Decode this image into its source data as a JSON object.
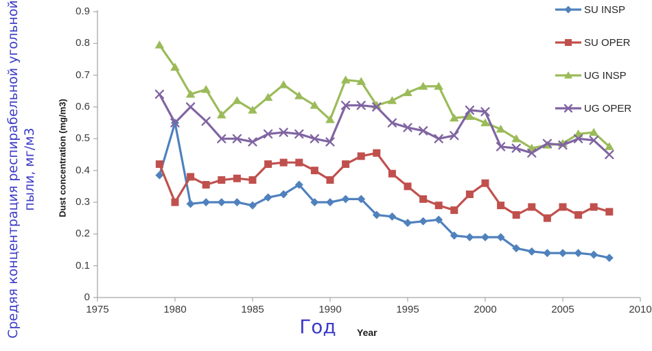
{
  "chart_data": {
    "type": "line",
    "xlabel_ru": "Год",
    "xlabel_en": "Year",
    "ylabel_ru_line1": "Средяя концентрация респирабельной угольной",
    "ylabel_ru_line2": "пыли, мг/м3",
    "ylabel_en": "Dust concentration (mg/m3)",
    "xlim": [
      1975,
      2010
    ],
    "ylim": [
      0,
      0.9
    ],
    "grid": false,
    "legend_position": "top-right-outside",
    "x_ticks": [
      "1975",
      "1980",
      "1985",
      "1990",
      "1995",
      "2000",
      "2005",
      "2010"
    ],
    "y_ticks": [
      "0",
      "0.1",
      "0.2",
      "0.3",
      "0.4",
      "0.5",
      "0.6",
      "0.7",
      "0.8",
      "0.9"
    ],
    "x": [
      1979,
      1980,
      1981,
      1982,
      1983,
      1984,
      1985,
      1986,
      1987,
      1988,
      1989,
      1990,
      1991,
      1992,
      1993,
      1994,
      1995,
      1996,
      1997,
      1998,
      1999,
      2000,
      2001,
      2002,
      2003,
      2004,
      2005,
      2006,
      2007,
      2008
    ],
    "series": [
      {
        "name": "SU INSP",
        "color": "#4F81BD",
        "marker": "diamond",
        "values": [
          0.385,
          0.55,
          0.295,
          0.3,
          0.3,
          0.3,
          0.29,
          0.315,
          0.325,
          0.355,
          0.3,
          0.3,
          0.31,
          0.31,
          0.26,
          0.255,
          0.235,
          0.24,
          0.245,
          0.195,
          0.19,
          0.19,
          0.19,
          0.155,
          0.145,
          0.14,
          0.14,
          0.14,
          0.135,
          0.125
        ]
      },
      {
        "name": "SU OPER",
        "color": "#C0504D",
        "marker": "square",
        "values": [
          0.42,
          0.3,
          0.38,
          0.355,
          0.37,
          0.375,
          0.37,
          0.42,
          0.425,
          0.425,
          0.4,
          0.37,
          0.42,
          0.445,
          0.455,
          0.39,
          0.35,
          0.31,
          0.29,
          0.275,
          0.325,
          0.36,
          0.29,
          0.26,
          0.285,
          0.25,
          0.285,
          0.26,
          0.285,
          0.27
        ]
      },
      {
        "name": "UG INSP",
        "color": "#9BBB59",
        "marker": "triangle",
        "values": [
          0.795,
          0.725,
          0.64,
          0.655,
          0.575,
          0.62,
          0.59,
          0.63,
          0.67,
          0.635,
          0.605,
          0.56,
          0.685,
          0.68,
          0.605,
          0.62,
          0.645,
          0.665,
          0.665,
          0.565,
          0.57,
          0.55,
          0.53,
          0.5,
          0.47,
          0.48,
          0.485,
          0.515,
          0.52,
          0.475
        ]
      },
      {
        "name": "UG OPER",
        "color": "#8064A2",
        "marker": "x",
        "values": [
          0.64,
          0.55,
          0.6,
          0.555,
          0.5,
          0.5,
          0.49,
          0.515,
          0.52,
          0.515,
          0.5,
          0.49,
          0.605,
          0.605,
          0.6,
          0.55,
          0.535,
          0.525,
          0.5,
          0.51,
          0.59,
          0.585,
          0.475,
          0.47,
          0.455,
          0.485,
          0.48,
          0.5,
          0.495,
          0.45
        ]
      }
    ],
    "colors": {
      "axis": "#A6A6A6",
      "tick_text": "#3A3A3A",
      "ru_label_blue": "#3C3CC8"
    }
  }
}
